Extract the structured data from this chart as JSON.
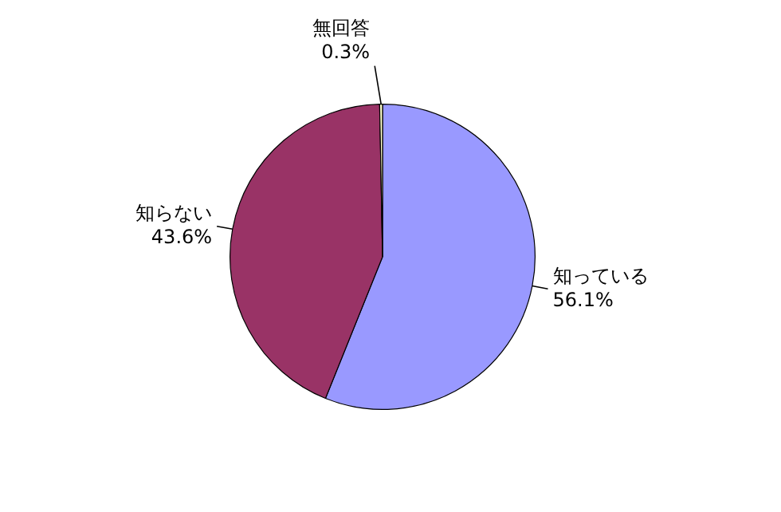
{
  "chart_data": {
    "type": "pie",
    "categories": [
      "知っている",
      "知らない",
      "無回答"
    ],
    "values": [
      56.1,
      43.6,
      0.3
    ],
    "value_labels": [
      "56.1%",
      "43.6%",
      "0.3%"
    ],
    "colors": [
      "#9999ff",
      "#993366",
      "#ffffcc"
    ],
    "legend": false
  }
}
